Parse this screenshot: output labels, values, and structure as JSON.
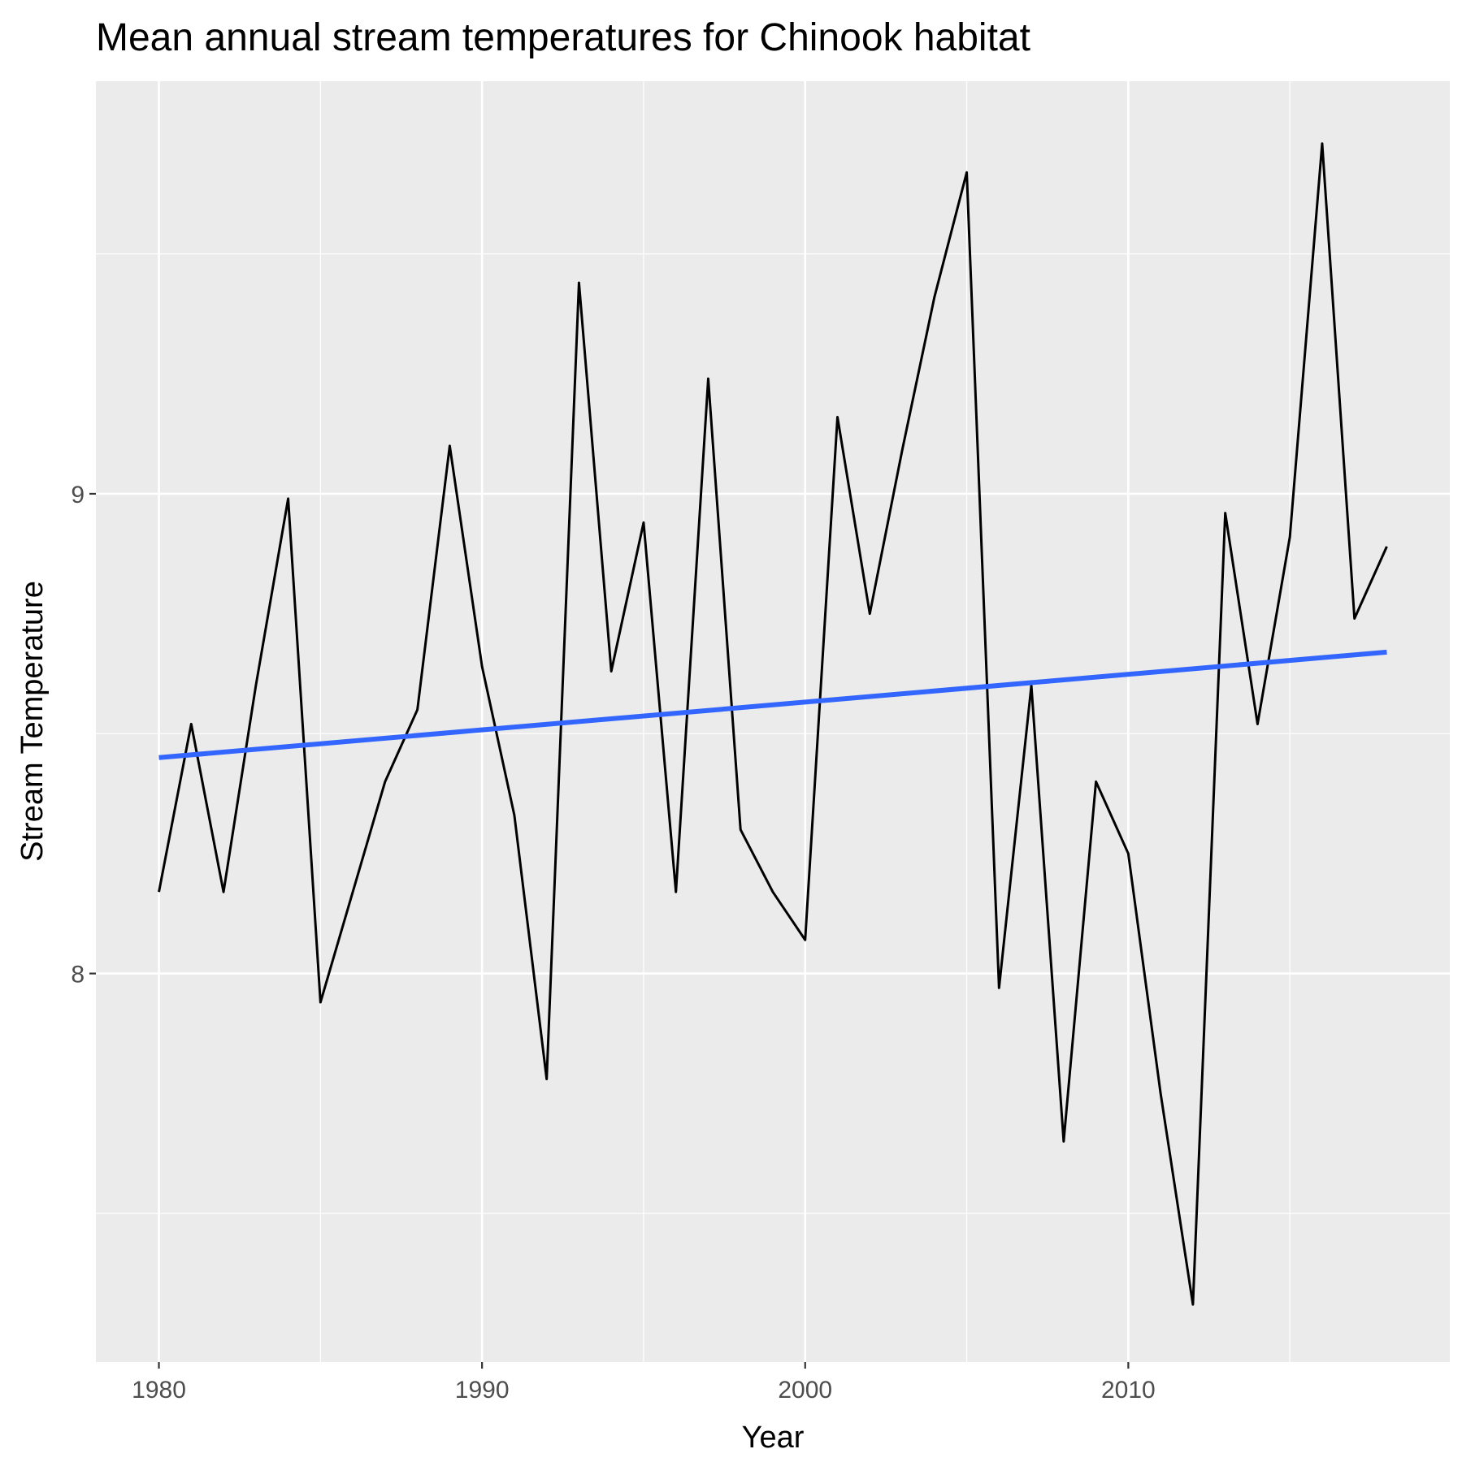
{
  "chart_data": {
    "type": "line",
    "title": "Mean annual stream temperatures for Chinook habitat",
    "xlabel": "Year",
    "ylabel": "Stream Temperature",
    "xlim": [
      1978.05,
      2019.95
    ],
    "ylim": [
      7.19,
      9.86
    ],
    "x_ticks": [
      1980,
      1990,
      2000,
      2010
    ],
    "y_ticks": [
      8,
      9
    ],
    "x_minor_ticks": [
      1985,
      1995,
      2005,
      2015
    ],
    "y_minor_ticks": [
      7.5,
      8.5,
      9.5
    ],
    "grid": true,
    "panel_background": "#ebebeb",
    "grid_color": "#ffffff",
    "series": [
      {
        "color": "#000000",
        "x": [
          1980,
          1981,
          1982,
          1983,
          1984,
          1985,
          1986,
          1987,
          1988,
          1989,
          1990,
          1991,
          1992,
          1993,
          1994,
          1995,
          1996,
          1997,
          1998,
          1999,
          2000,
          2001,
          2002,
          2003,
          2004,
          2005,
          2006,
          2007,
          2008,
          2009,
          2010,
          2011,
          2012,
          2013,
          2014,
          2015,
          2016,
          2017,
          2018
        ],
        "values": [
          8.17,
          8.52,
          8.17,
          8.6,
          8.99,
          7.94,
          8.17,
          8.4,
          8.55,
          9.1,
          8.64,
          8.33,
          7.78,
          9.44,
          8.63,
          8.94,
          8.17,
          9.24,
          8.3,
          8.17,
          8.07,
          9.16,
          8.75,
          9.09,
          9.41,
          9.67,
          7.97,
          8.6,
          7.65,
          8.4,
          8.25,
          7.75,
          7.31,
          8.96,
          8.52,
          8.91,
          9.73,
          8.74,
          8.89
        ]
      },
      {
        "color": "#3366ff",
        "x": [
          1980,
          2018
        ],
        "values": [
          8.45,
          8.67
        ]
      }
    ]
  }
}
